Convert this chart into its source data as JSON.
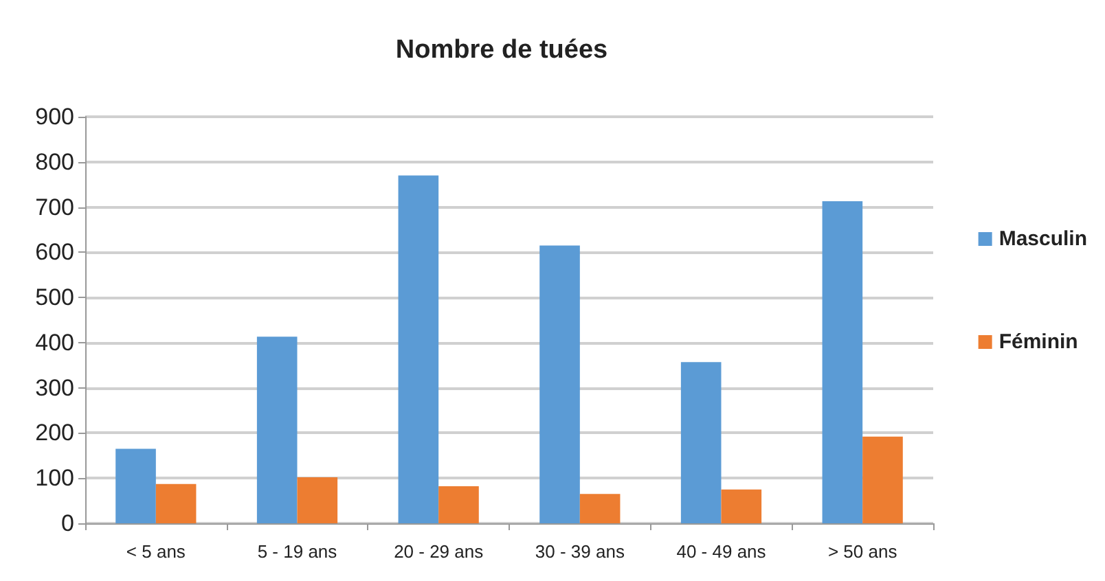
{
  "chart_data": {
    "type": "bar",
    "title": "Nombre de tuées",
    "categories": [
      "< 5 ans",
      "5 - 19 ans",
      "20 - 29 ans",
      "30 - 39 ans",
      "40 - 49 ans",
      "> 50 ans"
    ],
    "series": [
      {
        "name": "Masculin",
        "color": "#5b9bd5",
        "values": [
          165,
          413,
          770,
          615,
          357,
          713
        ]
      },
      {
        "name": "Féminin",
        "color": "#ed7d31",
        "values": [
          87,
          102,
          82,
          65,
          75,
          192
        ]
      }
    ],
    "ylim": [
      0,
      900
    ],
    "yticks": [
      0,
      100,
      200,
      300,
      400,
      500,
      600,
      700,
      800,
      900
    ],
    "grid": "y",
    "legend": "right"
  }
}
